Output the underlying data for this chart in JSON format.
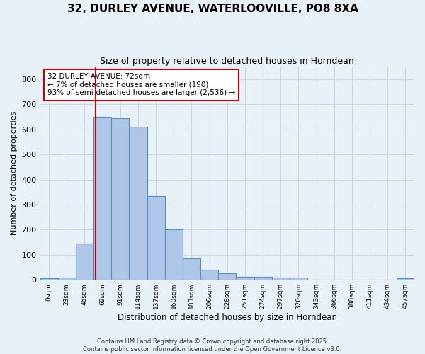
{
  "title": "32, DURLEY AVENUE, WATERLOOVILLE, PO8 8XA",
  "subtitle": "Size of property relative to detached houses in Horndean",
  "xlabel": "Distribution of detached houses by size in Horndean",
  "ylabel": "Number of detached properties",
  "bin_labels": [
    "0sqm",
    "23sqm",
    "46sqm",
    "69sqm",
    "91sqm",
    "114sqm",
    "137sqm",
    "160sqm",
    "183sqm",
    "206sqm",
    "228sqm",
    "251sqm",
    "274sqm",
    "297sqm",
    "320sqm",
    "343sqm",
    "366sqm",
    "388sqm",
    "411sqm",
    "434sqm",
    "457sqm"
  ],
  "bar_heights": [
    5,
    8,
    145,
    650,
    645,
    610,
    335,
    200,
    85,
    40,
    25,
    12,
    12,
    10,
    8,
    0,
    0,
    0,
    0,
    0,
    5
  ],
  "bar_color": "#aec6e8",
  "bar_edge_color": "#5b8db8",
  "grid_color": "#c8d8e8",
  "bg_color": "#e8f0f8",
  "red_line_x": 3.13,
  "annotation_text": "32 DURLEY AVENUE: 72sqm\n← 7% of detached houses are smaller (190)\n93% of semi-detached houses are larger (2,536) →",
  "annotation_box_color": "#ffffff",
  "annotation_box_edge": "#cc0000",
  "red_line_color": "#cc0000",
  "footer_line1": "Contains HM Land Registry data © Crown copyright and database right 2025.",
  "footer_line2": "Contains public sector information licensed under the Open Government Licence v3.0.",
  "ylim": [
    0,
    850
  ],
  "yticks": [
    0,
    100,
    200,
    300,
    400,
    500,
    600,
    700,
    800
  ]
}
